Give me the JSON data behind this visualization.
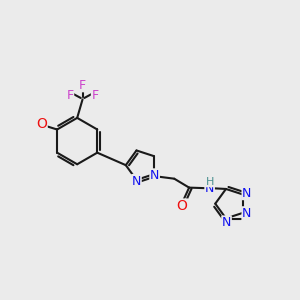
{
  "bg_color": "#ebebeb",
  "bond_color": "#1a1a1a",
  "bond_width": 1.5,
  "atom_colors": {
    "N": "#1010ee",
    "O": "#ee1010",
    "F": "#cc44cc",
    "H": "#4a9090",
    "C": "#1a1a1a"
  },
  "font_size": 9
}
